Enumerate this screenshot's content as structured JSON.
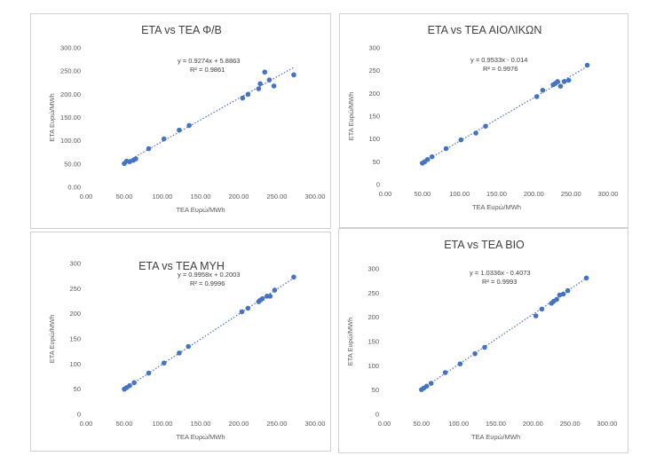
{
  "chart_data": [
    {
      "type": "scatter",
      "title": "ETA vs TEA Φ/Β",
      "xlabel": "TEA Ευρώ/MWh",
      "ylabel": "ETA Ευρώ/MWh",
      "xlim": [
        0,
        300
      ],
      "ylim": [
        0,
        300
      ],
      "xticks": [
        "0.00",
        "50.00",
        "100.00",
        "150.00",
        "200.00",
        "250.00",
        "300.00"
      ],
      "yticks": [
        "0.00",
        "50.00",
        "100.00",
        "150.00",
        "200.00",
        "250.00",
        "300.00"
      ],
      "trendline": {
        "slope": 0.9274,
        "intercept": 5.8863
      },
      "equation": "y = 0.9274x + 5.8863",
      "r2": "R² = 0.9861",
      "x": [
        50,
        53,
        57,
        62,
        65,
        82,
        102,
        122,
        135,
        205,
        212,
        226,
        228,
        234,
        240,
        246,
        272
      ],
      "y": [
        51,
        56,
        55,
        58,
        61,
        83,
        104,
        123,
        133,
        192,
        200,
        212,
        223,
        248,
        231,
        218,
        242
      ]
    },
    {
      "type": "scatter",
      "title": "ETA vs TEA ΑΙΟΛΙΚΩΝ",
      "xlabel": "TEA Ευρώ/MWh",
      "ylabel": "ETA Ευρώ/MWh",
      "xlim": [
        0,
        300
      ],
      "ylim": [
        0,
        300
      ],
      "xticks": [
        "0.00",
        "50.00",
        "100.00",
        "150.00",
        "200.00",
        "250.00",
        "300.00"
      ],
      "yticks": [
        "0",
        "50",
        "100",
        "150",
        "200",
        "250",
        "300"
      ],
      "trendline": {
        "slope": 0.9533,
        "intercept": -0.014
      },
      "equation": "y = 0.9533x - 0.014",
      "r2": "R² = 0.9976",
      "x": [
        50,
        53,
        57,
        63,
        82,
        102,
        122,
        135,
        204,
        212,
        226,
        229,
        232,
        236,
        241,
        247,
        272
      ],
      "y": [
        47,
        50,
        55,
        61,
        79,
        98,
        113,
        128,
        193,
        207,
        219,
        222,
        226,
        216,
        226,
        229,
        262
      ]
    },
    {
      "type": "scatter",
      "title": "ETA vs TEA ΜΥΗ",
      "xlabel": "TEA Ευρώ/MWh",
      "ylabel": "ETA Ευρώ/MWh",
      "xlim": [
        0,
        300
      ],
      "ylim": [
        0,
        300
      ],
      "xticks": [
        "0.00",
        "50.00",
        "100.00",
        "150.00",
        "200.00",
        "250.00",
        "300.00"
      ],
      "yticks": [
        "0",
        "50",
        "100",
        "150",
        "200",
        "250",
        "300"
      ],
      "trendline": {
        "slope": 0.9958,
        "intercept": 0.2003
      },
      "equation": "y = 0.9958x + 0.2003",
      "r2": "R² = 0.9996",
      "x": [
        50,
        53,
        57,
        63,
        82,
        102,
        122,
        134,
        204,
        212,
        226,
        228,
        231,
        237,
        241,
        247,
        272
      ],
      "y": [
        50,
        53,
        57,
        63,
        82,
        102,
        122,
        135,
        204,
        211,
        224,
        227,
        230,
        235,
        235,
        247,
        273
      ]
    },
    {
      "type": "scatter",
      "title": "ETA vs TEA ΒΙΟ",
      "xlabel": "TEA Ευρώ/MWh",
      "ylabel": "ETA Ευρώ/MWh",
      "xlim": [
        0,
        300
      ],
      "ylim": [
        0,
        300
      ],
      "xticks": [
        "0.00",
        "50.00",
        "100.00",
        "150.00",
        "200.00",
        "250.00",
        "300.00"
      ],
      "yticks": [
        "0",
        "50",
        "100",
        "150",
        "200",
        "250",
        "300"
      ],
      "trendline": {
        "slope": 1.0336,
        "intercept": -0.4073
      },
      "equation": "y = 1.0336x - 0.4073",
      "r2": "R² = 0.9993",
      "x": [
        50,
        53,
        57,
        63,
        82,
        102,
        122,
        135,
        204,
        212,
        225,
        228,
        232,
        236,
        241,
        247,
        272
      ],
      "y": [
        51,
        54,
        58,
        64,
        86,
        104,
        125,
        138,
        203,
        217,
        229,
        233,
        237,
        246,
        248,
        255,
        281
      ]
    }
  ],
  "colors": {
    "marker": "#4472c4",
    "trendline": "#4472c4",
    "text": "#595959"
  }
}
